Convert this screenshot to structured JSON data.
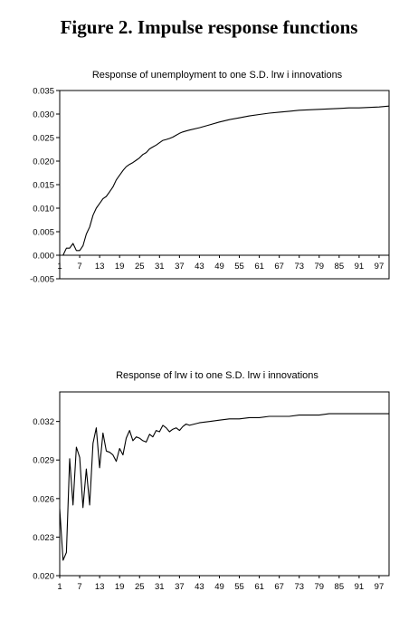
{
  "figure_title": "Figure 2. Impulse response functions",
  "chart_data": [
    {
      "type": "line",
      "title": "Response of unemployment to one S.D. lrw i  innovations",
      "xlabel": "",
      "ylabel": "",
      "ylim": [
        -0.005,
        0.035
      ],
      "y_ticks": [
        "0.035",
        "0.030",
        "0.025",
        "0.020",
        "0.015",
        "0.010",
        "0.005",
        "0.000",
        "-0.005"
      ],
      "y_tick_values": [
        0.035,
        0.03,
        0.025,
        0.02,
        0.015,
        0.01,
        0.005,
        0.0,
        -0.005
      ],
      "x_ticks": [
        "1",
        "7",
        "13",
        "19",
        "25",
        "31",
        "37",
        "43",
        "49",
        "55",
        "61",
        "67",
        "73",
        "79",
        "85",
        "91",
        "97"
      ],
      "xlim": [
        1,
        100
      ],
      "series": [
        {
          "x": [
            1,
            2,
            3,
            4,
            5,
            6,
            7,
            8,
            9,
            10,
            11,
            12,
            13,
            14,
            15,
            16,
            17,
            18,
            19,
            20,
            21,
            22,
            23,
            24,
            25,
            26,
            27,
            28,
            29,
            30,
            31,
            32,
            33,
            34,
            35,
            36,
            37,
            38,
            39,
            40,
            43,
            46,
            49,
            52,
            55,
            58,
            61,
            64,
            67,
            70,
            73,
            76,
            79,
            82,
            85,
            88,
            91,
            94,
            97,
            100
          ],
          "values": [
            0.0,
            0.0,
            0.0015,
            0.0015,
            0.0025,
            0.001,
            0.001,
            0.002,
            0.0045,
            0.006,
            0.0085,
            0.01,
            0.011,
            0.012,
            0.0125,
            0.0135,
            0.0145,
            0.016,
            0.017,
            0.018,
            0.0188,
            0.0193,
            0.0197,
            0.0202,
            0.0207,
            0.0214,
            0.0218,
            0.0226,
            0.023,
            0.0234,
            0.0239,
            0.0244,
            0.0246,
            0.0248,
            0.0251,
            0.0255,
            0.0259,
            0.0262,
            0.0264,
            0.0266,
            0.0271,
            0.0277,
            0.0283,
            0.0288,
            0.0292,
            0.0296,
            0.0299,
            0.0302,
            0.0304,
            0.0306,
            0.0308,
            0.0309,
            0.031,
            0.0311,
            0.0312,
            0.0313,
            0.0313,
            0.0314,
            0.0315,
            0.0317
          ]
        }
      ]
    },
    {
      "type": "line",
      "title": "Response of lrw i to one S.D. lrw i innovations",
      "xlabel": "",
      "ylabel": "",
      "ylim": [
        0.02,
        0.0343
      ],
      "y_ticks": [
        "0.032",
        "0.029",
        "0.026",
        "0.023",
        "0.020"
      ],
      "y_tick_values": [
        0.032,
        0.029,
        0.026,
        0.023,
        0.02
      ],
      "x_ticks": [
        "1",
        "7",
        "13",
        "19",
        "25",
        "31",
        "37",
        "43",
        "49",
        "55",
        "61",
        "67",
        "73",
        "79",
        "85",
        "91",
        "97"
      ],
      "xlim": [
        1,
        100
      ],
      "series": [
        {
          "x": [
            1,
            2,
            3,
            4,
            5,
            6,
            7,
            8,
            9,
            10,
            11,
            12,
            13,
            14,
            15,
            16,
            17,
            18,
            19,
            20,
            21,
            22,
            23,
            24,
            25,
            26,
            27,
            28,
            29,
            30,
            31,
            32,
            33,
            34,
            35,
            36,
            37,
            38,
            39,
            40,
            43,
            46,
            49,
            52,
            55,
            58,
            61,
            64,
            67,
            70,
            73,
            76,
            79,
            82,
            85,
            88,
            91,
            94,
            97,
            100
          ],
          "values": [
            0.0252,
            0.0212,
            0.0218,
            0.0291,
            0.0255,
            0.03,
            0.0292,
            0.0253,
            0.0283,
            0.0255,
            0.0303,
            0.0315,
            0.0284,
            0.0311,
            0.0297,
            0.0296,
            0.0294,
            0.0289,
            0.0299,
            0.0294,
            0.0307,
            0.0313,
            0.0305,
            0.0308,
            0.0307,
            0.0305,
            0.0304,
            0.031,
            0.0308,
            0.0313,
            0.0312,
            0.0317,
            0.0315,
            0.0312,
            0.0314,
            0.0315,
            0.0313,
            0.0316,
            0.0318,
            0.0317,
            0.0319,
            0.032,
            0.0321,
            0.0322,
            0.0322,
            0.0323,
            0.0323,
            0.0324,
            0.0324,
            0.0324,
            0.0325,
            0.0325,
            0.0325,
            0.0326,
            0.0326,
            0.0326,
            0.0326,
            0.0326,
            0.0326,
            0.0326
          ]
        }
      ]
    }
  ]
}
